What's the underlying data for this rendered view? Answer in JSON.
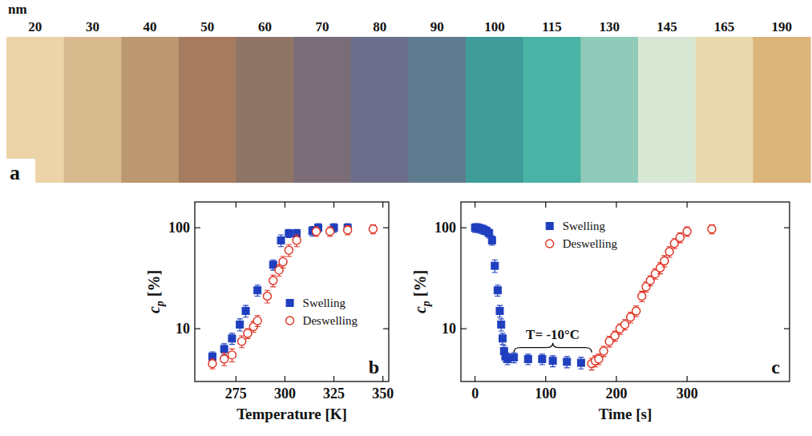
{
  "chart_data": [
    {
      "type": "swatch",
      "panel_label": "a",
      "title": "nm",
      "categories": [
        20,
        30,
        40,
        50,
        60,
        70,
        80,
        90,
        100,
        115,
        130,
        145,
        165,
        190
      ],
      "colors": [
        "#ecd4a8",
        "#d8ba8f",
        "#bb9772",
        "#a57c60",
        "#8f7566",
        "#7b6d77",
        "#6c6e8b",
        "#5f7b8f",
        "#3f9c98",
        "#4bb3a5",
        "#90cab9",
        "#d8e7d3",
        "#e9d7af",
        "#dcb57a"
      ]
    },
    {
      "type": "scatter",
      "panel_label": "b",
      "log": "y",
      "legend": "right",
      "xlabel": "Temperature [K]",
      "ylabel": "cp [%]",
      "xlim": [
        254,
        353
      ],
      "ylim": [
        3,
        180
      ],
      "xticks": [
        275,
        300,
        325,
        350
      ],
      "yticks": [
        10,
        100
      ],
      "series": [
        {
          "name": "Swelling",
          "color": "#1f3fbf",
          "marker": "square",
          "x": [
            263,
            269,
            273,
            277,
            280,
            286,
            294,
            298,
            302,
            306,
            314,
            317,
            325,
            332
          ],
          "values": [
            5.3,
            6.3,
            8,
            11,
            15,
            24,
            43,
            75,
            88,
            88,
            93,
            100,
            100,
            100
          ],
          "errors": [
            0.6,
            0.8,
            1,
            1.5,
            2,
            3,
            5,
            10,
            8,
            8,
            10,
            10,
            10,
            10
          ]
        },
        {
          "name": "Deswelling",
          "color": "#e03020",
          "marker": "open_circle",
          "x": [
            263,
            269,
            273,
            278,
            281,
            284,
            286,
            291,
            294,
            297,
            299,
            302,
            306,
            316,
            323,
            332,
            345
          ],
          "values": [
            4.5,
            5,
            5.5,
            7.5,
            9,
            10.5,
            12,
            21,
            30,
            38,
            46,
            60,
            75,
            92,
            92,
            95,
            97
          ],
          "errors": [
            0.5,
            0.7,
            0.8,
            1,
            1,
            1.3,
            1.5,
            3,
            4,
            5,
            6,
            8,
            10,
            10,
            10,
            10,
            10
          ]
        }
      ]
    },
    {
      "type": "scatter",
      "panel_label": "c",
      "log": "y",
      "legend": "top",
      "xlabel": "Time [s]",
      "ylabel": "cp [%]",
      "xlim": [
        -20,
        445
      ],
      "ylim": [
        3,
        180
      ],
      "xticks": [
        0,
        100,
        200,
        300
      ],
      "yticks": [
        10,
        100
      ],
      "annotations": [
        {
          "text": "T= -10°C",
          "x": [
            55,
            165
          ],
          "y": 6.5
        }
      ],
      "series": [
        {
          "name": "Swelling",
          "color": "#1f3fbf",
          "marker": "square",
          "x": [
            0,
            4,
            8,
            12,
            16,
            20,
            24,
            28,
            32,
            35,
            37,
            39,
            41,
            43,
            46,
            55,
            75,
            95,
            110,
            130,
            150
          ],
          "values": [
            100,
            100,
            98,
            96,
            93,
            88,
            75,
            42,
            24,
            15,
            11,
            8,
            6,
            5.3,
            5,
            5.2,
            5,
            5,
            4.8,
            4.7,
            4.6
          ],
          "errors": [
            10,
            10,
            10,
            10,
            9,
            9,
            8,
            6,
            3,
            2,
            1.5,
            1,
            0.8,
            0.6,
            0.6,
            0.6,
            0.6,
            0.6,
            0.6,
            0.6,
            0.6
          ]
        },
        {
          "name": "Deswelling",
          "color": "#e03020",
          "marker": "open_circle",
          "x": [
            165,
            170,
            175,
            182,
            190,
            198,
            205,
            212,
            220,
            228,
            236,
            242,
            248,
            255,
            262,
            268,
            275,
            282,
            290,
            300,
            335
          ],
          "values": [
            4.5,
            4.8,
            5,
            6,
            7.5,
            8.5,
            10,
            11,
            13,
            15,
            21,
            26,
            30,
            35,
            40,
            47,
            58,
            70,
            80,
            92,
            97
          ],
          "errors": [
            0.6,
            0.6,
            0.6,
            0.7,
            0.9,
            1,
            1.2,
            1.3,
            1.6,
            1.8,
            2.5,
            3,
            3.5,
            4,
            5,
            6,
            7,
            8,
            9,
            10,
            10
          ]
        }
      ]
    }
  ]
}
